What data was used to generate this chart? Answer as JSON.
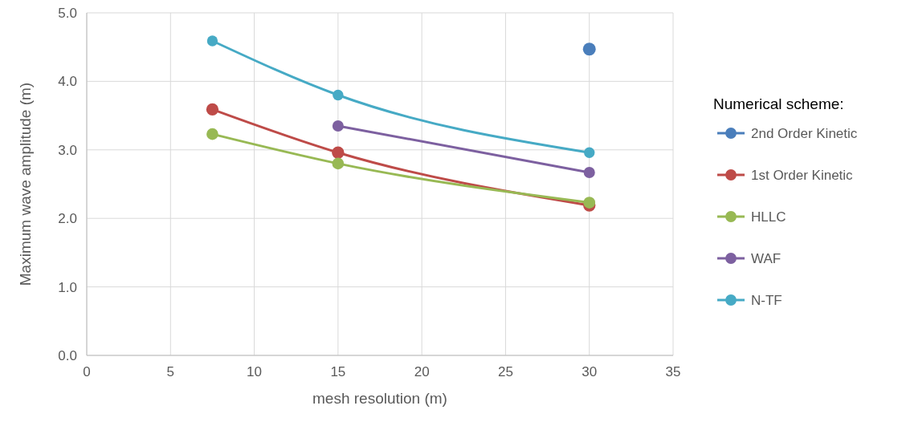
{
  "chart_data": {
    "type": "line",
    "xlabel": "mesh resolution (m)",
    "ylabel": "Maximum wave amplitude (m)",
    "legend_title": "Numerical scheme:",
    "x": [
      7.5,
      15,
      30
    ],
    "series": [
      {
        "name": "2nd Order Kinetic",
        "color": "#4a7ebb",
        "values": [
          null,
          null,
          4.47
        ]
      },
      {
        "name": "1st Order Kinetic",
        "color": "#be4b48",
        "values": [
          3.59,
          2.96,
          2.19
        ]
      },
      {
        "name": "HLLC",
        "color": "#98b954",
        "values": [
          3.23,
          2.8,
          2.23
        ]
      },
      {
        "name": "WAF",
        "color": "#7d60a0",
        "values": [
          null,
          3.35,
          2.67
        ]
      },
      {
        "name": "N-TF",
        "color": "#46aac5",
        "values": [
          4.59,
          3.8,
          2.96
        ]
      }
    ],
    "xlim": [
      0,
      35
    ],
    "xticks": [
      0,
      5,
      10,
      15,
      20,
      25,
      30,
      35
    ],
    "ylim": [
      0,
      5
    ],
    "yticks": [
      {
        "value": 0,
        "label": "0.0"
      },
      {
        "value": 1,
        "label": "1.0"
      },
      {
        "value": 2,
        "label": "2.0"
      },
      {
        "value": 3,
        "label": "3.0"
      },
      {
        "value": 4,
        "label": "4.0"
      },
      {
        "value": 5,
        "label": "5.0"
      }
    ],
    "grid": true,
    "legend": "right",
    "marker": "circle",
    "line_style": "solid"
  }
}
